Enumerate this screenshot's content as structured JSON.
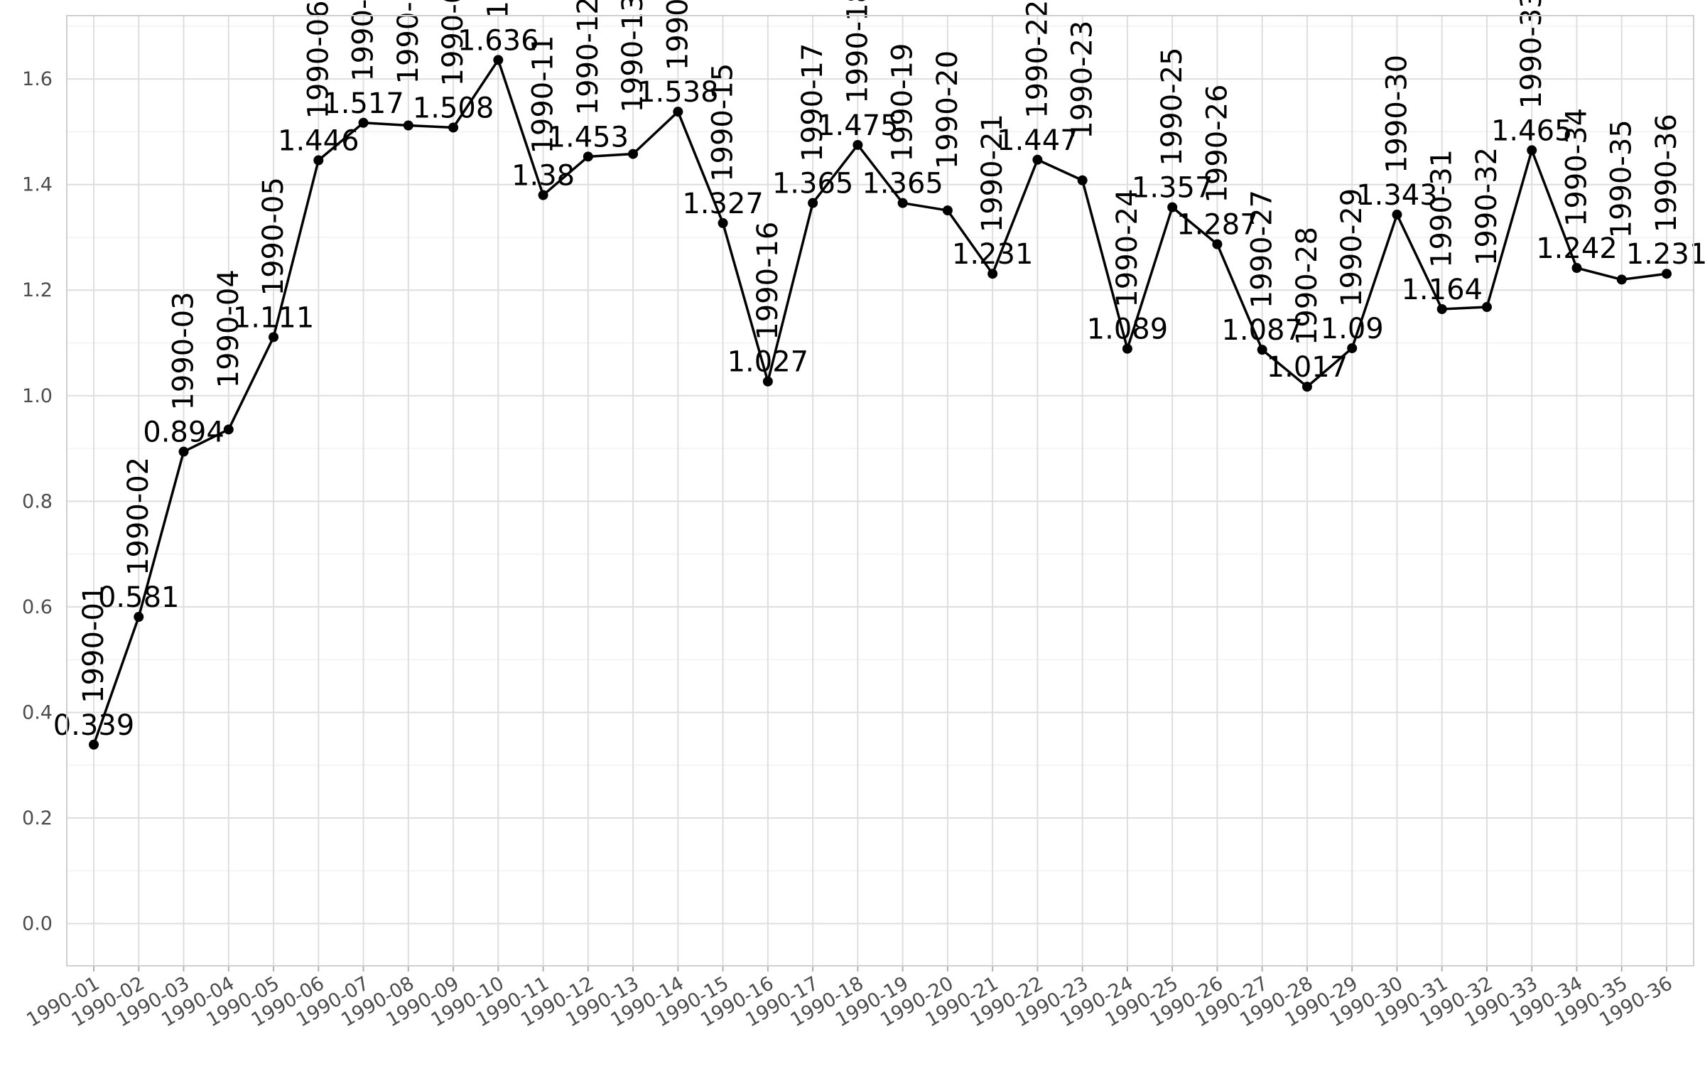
{
  "chart_data": {
    "type": "line",
    "title": "",
    "xlabel": "",
    "ylabel": "",
    "ylim": [
      -0.08,
      1.72
    ],
    "y_ticks": [
      0.0,
      0.2,
      0.4,
      0.6,
      0.8,
      1.0,
      1.2,
      1.4,
      1.6
    ],
    "grid": true,
    "legend": "none",
    "colors": {
      "line": "#000000",
      "grid": "#dedede",
      "axis_text": "#4d4d4d"
    },
    "categories": [
      "1990-01",
      "1990-02",
      "1990-03",
      "1990-04",
      "1990-05",
      "1990-06",
      "1990-07",
      "1990-08",
      "1990-09",
      "1990-10",
      "1990-11",
      "1990-12",
      "1990-13",
      "1990-14",
      "1990-15",
      "1990-16",
      "1990-17",
      "1990-18",
      "1990-19",
      "1990-20",
      "1990-21",
      "1990-22",
      "1990-23",
      "1990-24",
      "1990-25",
      "1990-26",
      "1990-27",
      "1990-28",
      "1990-29",
      "1990-30",
      "1990-31",
      "1990-32",
      "1990-33",
      "1990-34",
      "1990-35",
      "1990-36"
    ],
    "series": [
      {
        "values": [
          0.339,
          0.581,
          0.894,
          0.936,
          1.111,
          1.446,
          1.517,
          1.512,
          1.508,
          1.636,
          1.38,
          1.453,
          1.458,
          1.538,
          1.327,
          1.027,
          1.365,
          1.475,
          1.365,
          1.351,
          1.231,
          1.447,
          1.408,
          1.089,
          1.357,
          1.287,
          1.087,
          1.017,
          1.09,
          1.343,
          1.164,
          1.168,
          1.465,
          1.242,
          1.22,
          1.231
        ],
        "value_labels": [
          "0.339",
          "0.581",
          "0.894",
          "",
          "1.111",
          "1.446",
          "1.517",
          "",
          "1.508",
          "1.636",
          "1.38",
          "1.453",
          "",
          "1.538",
          "1.327",
          "1.027",
          "1.365",
          "1.475",
          "1.365",
          "",
          "1.231",
          "1.447",
          "",
          "1.089",
          "1.357",
          "1.287",
          "1.087",
          "1.017",
          "1.09",
          "1.343",
          "1.164",
          "",
          "1.465",
          "1.242",
          "",
          "1.231"
        ]
      }
    ]
  }
}
